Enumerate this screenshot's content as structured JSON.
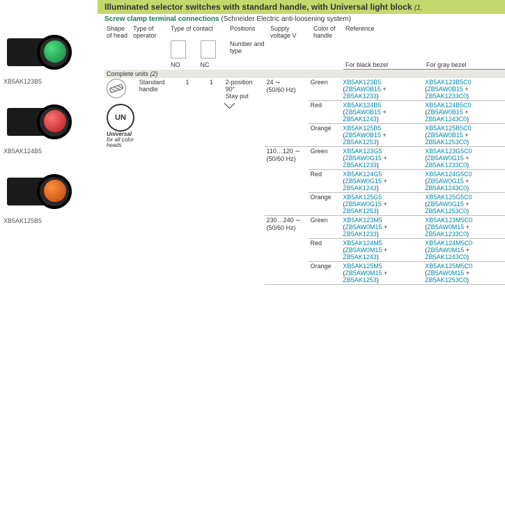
{
  "title": {
    "main": "Illuminated selector switches with standard handle, with Universal light block",
    "suffix": "(1,",
    "subtitle_bold": "Screw clamp terminal connections",
    "subtitle_rest": "(Schneider Electric anti-loosening system)"
  },
  "columns": {
    "c1": "Shape of head",
    "c2": "Type of operator",
    "c3": "Type of contact",
    "c3_sub": "Number and type",
    "c3_no": "NO",
    "c3_nc": "NC",
    "c4": "Positions",
    "c5": "Supply voltage V",
    "c6": "Color of handle",
    "c7": "Reference",
    "c7_black": "For black bezel",
    "c7_gray": "For gray bezel"
  },
  "section": {
    "label": "Complete units",
    "note": "(2)"
  },
  "operator": "Standard handle",
  "no_count": "1",
  "nc_count": "1",
  "position": {
    "l1": "2-position",
    "l2": "90°",
    "l3": "Stay put"
  },
  "universal": {
    "badge": "UN",
    "label": "Universal",
    "sub": "for all color heads"
  },
  "products": [
    {
      "label": "XB5AK123B5",
      "knob": "knob-green"
    },
    {
      "label": "XB5AK124B5",
      "knob": "knob-red"
    },
    {
      "label": "XB5AK125B5",
      "knob": "knob-orange"
    }
  ],
  "voltages": [
    {
      "l1": "24 ⏦",
      "l2": "(50/60 Hz)"
    },
    {
      "l1": "110…120 ∼",
      "l2": "(50/60 Hz)"
    },
    {
      "l1": "230…240 ∼",
      "l2": "(50/60 Hz)"
    }
  ],
  "rows": [
    {
      "v": 0,
      "color": "Green",
      "black": [
        "XB5AK123B5",
        "ZB5AW0B15",
        "ZB5AK1233"
      ],
      "gray": [
        "XB5AK123B5C0",
        "ZB5AW0B15",
        "ZB5AK1233C0"
      ]
    },
    {
      "v": 0,
      "color": "Red",
      "black": [
        "XB5AK124B5",
        "ZB5AW0B15",
        "ZB5AK1243"
      ],
      "gray": [
        "XB5AK124B5C0",
        "ZB5AW0B15",
        "ZB5AK1243C0"
      ]
    },
    {
      "v": 0,
      "color": "Orange",
      "black": [
        "XB5AK125B5",
        "ZB5AW0B15",
        "ZB5AK1253"
      ],
      "gray": [
        "XB5AK125B5C0",
        "ZB5AW0B15",
        "ZB5AK1253C0"
      ]
    },
    {
      "v": 1,
      "color": "Green",
      "black": [
        "XB5AK123G5",
        "ZB5AW0G15",
        "ZB5AK1233"
      ],
      "gray": [
        "XB5AK123G5C0",
        "ZB5AW0G15",
        "ZB5AK1233C0"
      ]
    },
    {
      "v": 1,
      "color": "Red",
      "black": [
        "XB5AK124G5",
        "ZB5AW0G15",
        "ZB5AK1243"
      ],
      "gray": [
        "XB5AK124G5C0",
        "ZB5AW0G15",
        "ZB5AK1243C0"
      ]
    },
    {
      "v": 1,
      "color": "Orange",
      "black": [
        "XB5AK125G5",
        "ZB5AW0G15",
        "ZB5AK1253"
      ],
      "gray": [
        "XB5AK125G5C0",
        "ZB5AW0G15",
        "ZB5AK1253C0"
      ]
    },
    {
      "v": 2,
      "color": "Green",
      "black": [
        "XB5AK123M5",
        "ZB5AW0M15",
        "ZB5AK1233"
      ],
      "gray": [
        "XB5AK123M5C0",
        "ZB5AW0M15",
        "ZB5AK1233C0"
      ]
    },
    {
      "v": 2,
      "color": "Red",
      "black": [
        "XB5AK124M5",
        "ZB5AW0M15",
        "ZB5AK1243"
      ],
      "gray": [
        "XB5AK124M5C0",
        "ZB5AW0M15",
        "ZB5AK1243C0"
      ]
    },
    {
      "v": 2,
      "color": "Orange",
      "black": [
        "XB5AK125M5",
        "ZB5AW0M15",
        "ZB5AK1253"
      ],
      "gray": [
        "XB5AK125M5C0",
        "ZB5AW0M15",
        "ZB5AK1253C0"
      ]
    }
  ],
  "colors": {
    "title_bg": "#c5d86d",
    "link": "#0088aa",
    "section_bg": "#e8e8e0"
  }
}
